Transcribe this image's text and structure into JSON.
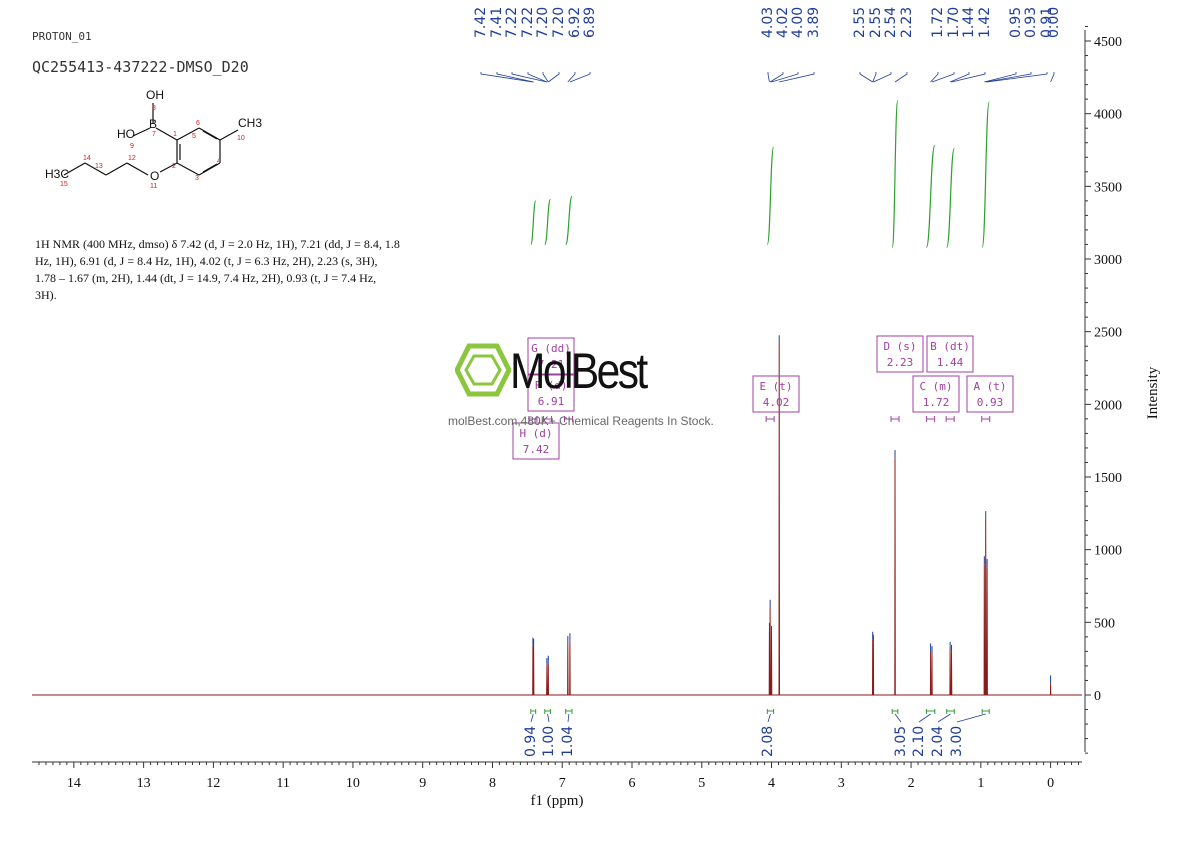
{
  "header": {
    "line1": "PROTON_01",
    "line2": "QC255413-437222-DMSO_D20"
  },
  "structure": {
    "atoms": [
      "OH",
      "B",
      "HO",
      "O",
      "CH3",
      "H3C"
    ],
    "numbers": [
      "8",
      "7",
      "9",
      "1",
      "6",
      "5",
      "10",
      "2",
      "4",
      "3",
      "12",
      "13",
      "14",
      "15",
      "11"
    ]
  },
  "description": "1H NMR (400 MHz, dmso) δ 7.42 (d, J = 2.0 Hz, 1H), 7.21 (dd, J = 8.4, 1.8 Hz, 1H), 6.91 (d, J = 8.4 Hz, 1H), 4.02 (t, J = 6.3 Hz, 2H), 2.23 (s, 3H), 1.78 – 1.67 (m, 2H), 1.44 (dt, J = 14.9, 7.4 Hz, 2H), 0.93 (t, J = 7.4 Hz, 3H).",
  "watermark": {
    "brand": "MolBest",
    "tagline": "molBest.com,480K+ Chemical Reagents In Stock."
  },
  "colors": {
    "spectrum": "#8b1a1a",
    "peak_label": "#1f3d99",
    "integral": "#2ca02c",
    "multiplet": "#a040a0",
    "axis": "#333333"
  },
  "chart_data": {
    "type": "line",
    "title": "",
    "xlabel": "f1 (ppm)",
    "ylabel": "Intensity",
    "xlim": [
      14.6,
      -0.45
    ],
    "ylim": [
      -450,
      4600
    ],
    "x_ticks": [
      14,
      13,
      12,
      11,
      10,
      9,
      8,
      7,
      6,
      5,
      4,
      3,
      2,
      1,
      0
    ],
    "y_ticks": [
      0,
      500,
      1000,
      1500,
      2000,
      2500,
      3000,
      3500,
      4000,
      4500
    ],
    "grid": false,
    "peaks": [
      {
        "ppm": 7.42,
        "height": 340
      },
      {
        "ppm": 7.41,
        "height": 330
      },
      {
        "ppm": 7.22,
        "height": 200
      },
      {
        "ppm": 7.2,
        "height": 215
      },
      {
        "ppm": 6.92,
        "height": 350
      },
      {
        "ppm": 6.89,
        "height": 370
      },
      {
        "ppm": 4.03,
        "height": 440
      },
      {
        "ppm": 4.02,
        "height": 600
      },
      {
        "ppm": 4.0,
        "height": 420
      },
      {
        "ppm": 3.89,
        "height": 2420
      },
      {
        "ppm": 2.55,
        "height": 380
      },
      {
        "ppm": 2.54,
        "height": 360
      },
      {
        "ppm": 2.23,
        "height": 1630
      },
      {
        "ppm": 1.72,
        "height": 300
      },
      {
        "ppm": 1.7,
        "height": 280
      },
      {
        "ppm": 1.44,
        "height": 310
      },
      {
        "ppm": 1.42,
        "height": 290
      },
      {
        "ppm": 0.95,
        "height": 900
      },
      {
        "ppm": 0.93,
        "height": 1210
      },
      {
        "ppm": 0.91,
        "height": 880
      },
      {
        "ppm": 0.0,
        "height": 80
      }
    ],
    "peak_labels": [
      "7.42",
      "7.41",
      "7.22",
      "7.22",
      "7.20",
      "7.20",
      "6.92",
      "6.89",
      "4.03",
      "4.02",
      "4.00",
      "3.89",
      "2.55",
      "2.55",
      "2.54",
      "2.23",
      "1.72",
      "1.70",
      "1.44",
      "1.42",
      "0.95",
      "0.93",
      "0.91",
      "0.00"
    ],
    "integrals": [
      {
        "ppm_from": 7.45,
        "ppm_to": 7.38,
        "value": "0.94"
      },
      {
        "ppm_from": 7.25,
        "ppm_to": 7.17,
        "value": "1.00"
      },
      {
        "ppm_from": 6.95,
        "ppm_to": 6.86,
        "value": "1.04"
      },
      {
        "ppm_from": 4.06,
        "ppm_to": 3.97,
        "value": "2.08"
      },
      {
        "ppm_from": 2.27,
        "ppm_to": 2.19,
        "value": "3.05"
      },
      {
        "ppm_from": 1.78,
        "ppm_to": 1.66,
        "value": "2.10"
      },
      {
        "ppm_from": 1.49,
        "ppm_to": 1.38,
        "value": "2.04"
      },
      {
        "ppm_from": 0.98,
        "ppm_to": 0.88,
        "value": "3.00"
      }
    ],
    "multiplets": [
      {
        "label": "G (dd)",
        "shift": "7.21",
        "ppm": 7.21
      },
      {
        "label": "F (d)",
        "shift": "6.91",
        "ppm": 6.91
      },
      {
        "label": "H (d)",
        "shift": "7.42",
        "ppm": 7.42
      },
      {
        "label": "E (t)",
        "shift": "4.02",
        "ppm": 4.02
      },
      {
        "label": "D (s)",
        "shift": "2.23",
        "ppm": 2.23
      },
      {
        "label": "B (dt)",
        "shift": "1.44",
        "ppm": 1.44
      },
      {
        "label": "C (m)",
        "shift": "1.72",
        "ppm": 1.72
      },
      {
        "label": "A (t)",
        "shift": "0.93",
        "ppm": 0.93
      }
    ]
  }
}
